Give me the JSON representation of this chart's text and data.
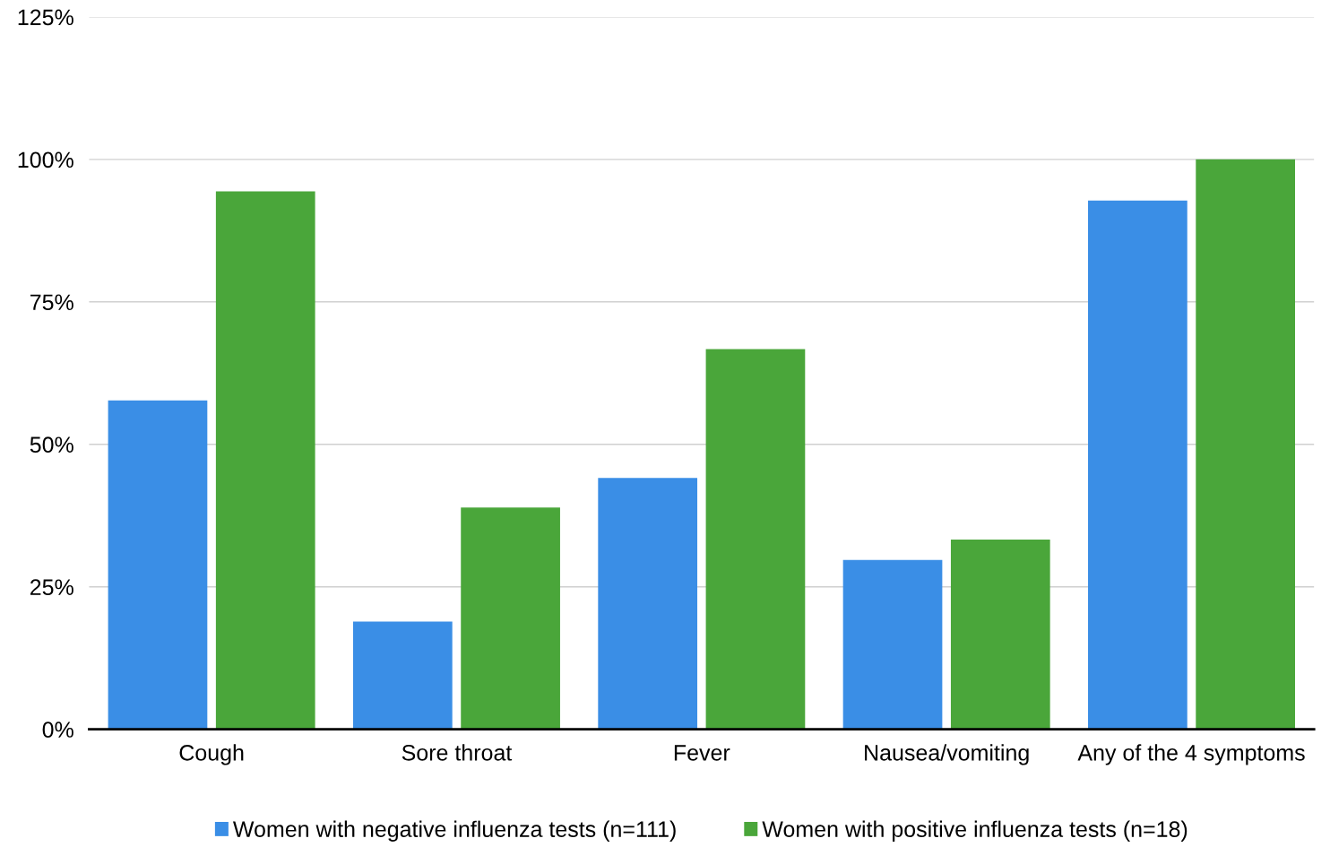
{
  "chart_data": {
    "type": "bar",
    "categories": [
      "Cough",
      "Sore throat",
      "Fever",
      "Nausea/vomiting",
      "Any of the 4 symptoms"
    ],
    "series": [
      {
        "name": "Women with negative influenza tests (n=111)",
        "color": "#3a8ee6",
        "values": [
          57.7,
          18.9,
          44.1,
          29.7,
          92.8
        ]
      },
      {
        "name": "Women with positive influenza tests (n=18)",
        "color": "#4aa63a",
        "values": [
          94.4,
          38.9,
          66.7,
          33.3,
          100
        ]
      }
    ],
    "ylim": [
      0,
      125
    ],
    "yticks": [
      {
        "value": 0,
        "label": "0%"
      },
      {
        "value": 25,
        "label": "25%"
      },
      {
        "value": 50,
        "label": "50%"
      },
      {
        "value": 75,
        "label": "75%"
      },
      {
        "value": 100,
        "label": "100%"
      },
      {
        "value": 125,
        "label": "125%"
      }
    ],
    "grid": "y",
    "legend": "bottom"
  }
}
